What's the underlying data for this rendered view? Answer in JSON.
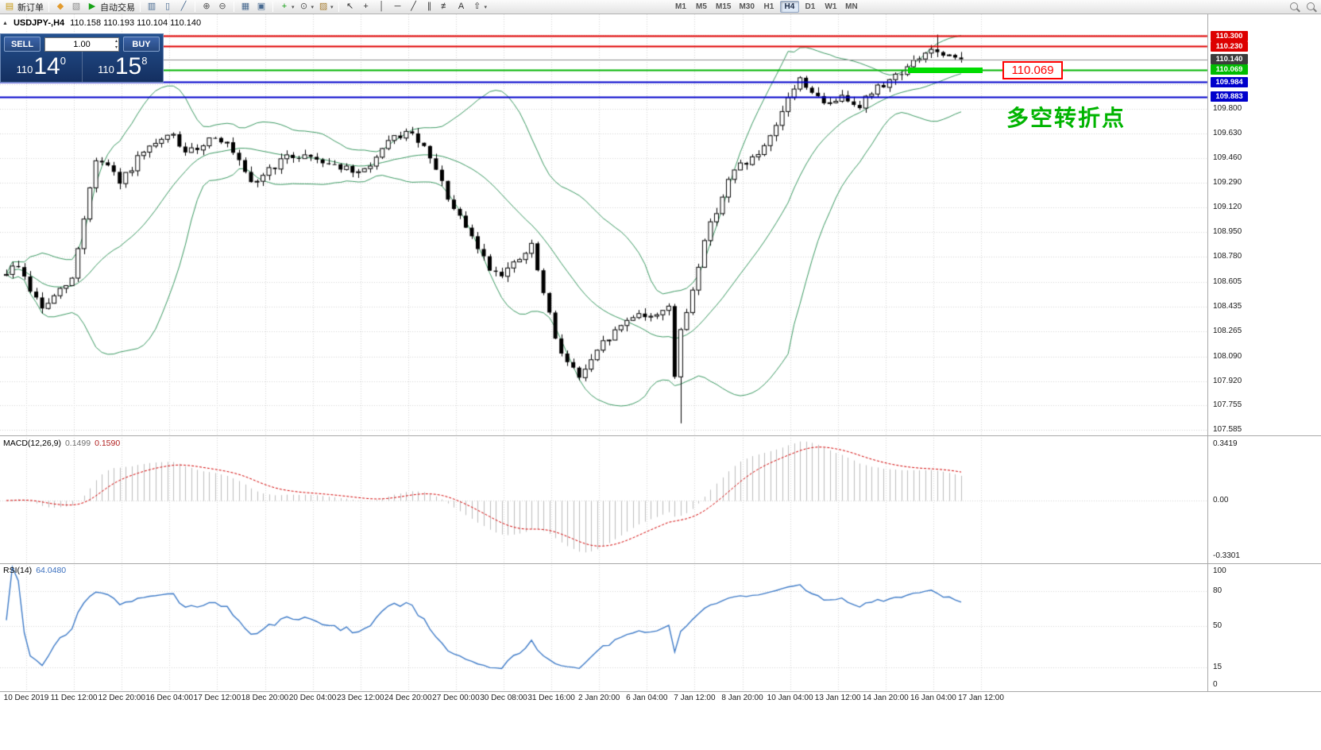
{
  "toolbar": {
    "dropdown_glyph": "▾",
    "left_groups": [
      {
        "items": [
          {
            "name": "new-order",
            "glyph": "▤",
            "glyph_color": "#c79810",
            "label": "新订单"
          }
        ]
      },
      {
        "items": [
          {
            "name": "indicator-list",
            "glyph": "◆",
            "glyph_color": "#e39b2d"
          },
          {
            "name": "profiles",
            "glyph": "▧",
            "glyph_color": "#888888"
          },
          {
            "name": "autotrading",
            "glyph": "▶",
            "glyph_color": "#17a317",
            "label": "自动交易"
          }
        ]
      },
      {
        "items": [
          {
            "name": "bar-chart-mode",
            "glyph": "▥",
            "glyph_color": "#46688f"
          },
          {
            "name": "candlestick-mode",
            "glyph": "▯",
            "glyph_color": "#46688f"
          },
          {
            "name": "line-chart-mode",
            "glyph": "╱",
            "glyph_color": "#46688f"
          }
        ]
      },
      {
        "items": [
          {
            "name": "zoom-in",
            "glyph": "⊕",
            "glyph_color": "#555555"
          },
          {
            "name": "zoom-out",
            "glyph": "⊖",
            "glyph_color": "#555555"
          }
        ]
      },
      {
        "items": [
          {
            "name": "tile-windows",
            "glyph": "▦",
            "glyph_color": "#46688f"
          },
          {
            "name": "arrange-windows",
            "glyph": "▣",
            "glyph_color": "#46688f"
          }
        ]
      },
      {
        "items": [
          {
            "name": "indicators-add",
            "glyph": "+",
            "glyph_color": "#0b9b0b",
            "dropdown": true
          },
          {
            "name": "periods",
            "glyph": "⊙",
            "glyph_color": "#555555",
            "dropdown": true
          },
          {
            "name": "templates",
            "glyph": "▨",
            "glyph_color": "#a57b2f",
            "dropdown": true
          }
        ]
      },
      {
        "items": [
          {
            "name": "cursor-tool",
            "glyph": "↖",
            "glyph_color": "#333333"
          },
          {
            "name": "crosshair-tool",
            "glyph": "+",
            "glyph_color": "#333333"
          },
          {
            "name": "vertical-line-tool",
            "glyph": "│",
            "glyph_color": "#333333"
          },
          {
            "name": "horizontal-line-tool",
            "glyph": "─",
            "glyph_color": "#333333"
          },
          {
            "name": "trendline-tool",
            "glyph": "╱",
            "glyph_color": "#333333"
          },
          {
            "name": "channel-tool",
            "glyph": "∥",
            "glyph_color": "#333333"
          },
          {
            "name": "fibonacci-tool",
            "glyph": "≢",
            "glyph_color": "#333333"
          },
          {
            "name": "text-tool",
            "glyph": "A",
            "glyph_color": "#333333"
          },
          {
            "name": "arrows-tool",
            "glyph": "⇧",
            "glyph_color": "#333333",
            "dropdown": true
          }
        ]
      }
    ],
    "timeframes": [
      {
        "label": "M1"
      },
      {
        "label": "M5"
      },
      {
        "label": "M15"
      },
      {
        "label": "M30"
      },
      {
        "label": "H1"
      },
      {
        "label": "H4",
        "active": true
      },
      {
        "label": "D1"
      },
      {
        "label": "W1"
      },
      {
        "label": "MN"
      }
    ],
    "right_icons": [
      {
        "name": "search"
      },
      {
        "name": "quick-search"
      }
    ]
  },
  "chart": {
    "collapse_glyph": "▲",
    "header": {
      "symbol_period": "USDJPY-,H4",
      "ohlc": "110.158 110.193 110.104 110.140"
    },
    "trade_panel": {
      "sell_label": "SELL",
      "buy_label": "BUY",
      "lot": "1.00",
      "spin_up": "▴",
      "spin_down": "▾",
      "sell_int": "110",
      "sell_big": "14",
      "sell_sup": "0",
      "buy_int": "110",
      "buy_big": "15",
      "buy_sup": "8"
    },
    "price_label_box": "110.069",
    "annotation": "多空转折点"
  },
  "indicators": {
    "macd_label": "MACD(12,26,9)",
    "macd_value_main": "0.1499",
    "macd_value_signal": "0.1590",
    "rsi_label": "RSI(14)",
    "rsi_value": "64.0480"
  },
  "chart_data": {
    "type": "candlestick",
    "symbol": "USDJPY-",
    "period": "H4",
    "bars": 161,
    "last_close": 110.14,
    "ylim": [
      107.547,
      110.45
    ],
    "price_axis_ticks": [
      109.8,
      109.63,
      109.46,
      109.29,
      109.12,
      108.95,
      108.78,
      108.605,
      108.435,
      108.265,
      108.09,
      107.92,
      107.755,
      107.585
    ],
    "extra_grid_prices": [
      110.31,
      110.14,
      109.97
    ],
    "badges": [
      {
        "value": "110.300",
        "bg": "#dd0000"
      },
      {
        "value": "110.230",
        "bg": "#dd0000"
      },
      {
        "value": "110.140",
        "bg": "#3c3c3c"
      },
      {
        "value": "110.069",
        "bg": "#00bc00"
      },
      {
        "value": "109.984",
        "bg": "#0000cc"
      },
      {
        "value": "109.883",
        "bg": "#0000cc"
      }
    ],
    "hlines": [
      {
        "name": "resistance-line-1",
        "price": 110.3,
        "color": "#e00000",
        "width": 2
      },
      {
        "name": "resistance-line-2",
        "price": 110.23,
        "color": "#e00000",
        "width": 2
      },
      {
        "name": "bid-price-line",
        "price": 110.14,
        "color": "#909090",
        "width": 1
      },
      {
        "name": "pivot-line",
        "price": 110.069,
        "color": "#00b400",
        "width": 2
      },
      {
        "name": "support-line-1",
        "price": 109.984,
        "color": "#0000cc",
        "width": 2
      },
      {
        "name": "support-line-2",
        "price": 109.883,
        "color": "#0000cc",
        "width": 2
      }
    ],
    "highlight_segment": {
      "price": 110.072,
      "color": "#00dc00",
      "note": "thick green segment over mid-January bars"
    },
    "time_labels": [
      "10 Dec 2019",
      "11 Dec 12:00",
      "12 Dec 20:00",
      "16 Dec 04:00",
      "17 Dec 12:00",
      "18 Dec 20:00",
      "20 Dec 04:00",
      "23 Dec 12:00",
      "24 Dec 20:00",
      "27 Dec 00:00",
      "30 Dec 08:00",
      "31 Dec 16:00",
      "2 Jan 20:00",
      "6 Jan 04:00",
      "7 Jan 12:00",
      "8 Jan 20:00",
      "10 Jan 04:00",
      "13 Jan 12:00",
      "14 Jan 20:00",
      "16 Jan 04:00",
      "17 Jan 12:00"
    ],
    "price_anchors": [
      [
        0,
        108.65
      ],
      [
        3,
        108.72
      ],
      [
        5,
        108.55
      ],
      [
        7,
        108.42
      ],
      [
        9,
        108.5
      ],
      [
        12,
        108.62
      ],
      [
        14,
        109.05
      ],
      [
        16,
        109.45
      ],
      [
        18,
        109.4
      ],
      [
        20,
        109.28
      ],
      [
        23,
        109.45
      ],
      [
        26,
        109.55
      ],
      [
        29,
        109.62
      ],
      [
        31,
        109.48
      ],
      [
        33,
        109.53
      ],
      [
        36,
        109.62
      ],
      [
        38,
        109.55
      ],
      [
        40,
        109.42
      ],
      [
        42,
        109.27
      ],
      [
        45,
        109.38
      ],
      [
        48,
        109.46
      ],
      [
        51,
        109.48
      ],
      [
        54,
        109.44
      ],
      [
        57,
        109.4
      ],
      [
        60,
        109.34
      ],
      [
        63,
        109.46
      ],
      [
        66,
        109.6
      ],
      [
        68,
        109.63
      ],
      [
        70,
        109.58
      ],
      [
        72,
        109.45
      ],
      [
        74,
        109.28
      ],
      [
        76,
        109.1
      ],
      [
        78,
        108.97
      ],
      [
        80,
        108.84
      ],
      [
        82,
        108.7
      ],
      [
        84,
        108.67
      ],
      [
        86,
        108.72
      ],
      [
        88,
        108.8
      ],
      [
        89,
        108.85
      ],
      [
        91,
        108.52
      ],
      [
        93,
        108.22
      ],
      [
        95,
        108.05
      ],
      [
        97,
        107.95
      ],
      [
        99,
        108.05
      ],
      [
        101,
        108.18
      ],
      [
        103,
        108.26
      ],
      [
        105,
        108.34
      ],
      [
        107,
        108.4
      ],
      [
        109,
        108.35
      ],
      [
        111,
        108.42
      ],
      [
        112,
        108.45
      ],
      [
        113,
        107.95
      ],
      [
        114,
        108.25
      ],
      [
        116,
        108.55
      ],
      [
        118,
        108.9
      ],
      [
        120,
        109.1
      ],
      [
        122,
        109.3
      ],
      [
        124,
        109.42
      ],
      [
        126,
        109.45
      ],
      [
        128,
        109.52
      ],
      [
        130,
        109.66
      ],
      [
        132,
        109.88
      ],
      [
        134,
        110.0
      ],
      [
        136,
        109.92
      ],
      [
        138,
        109.82
      ],
      [
        140,
        109.87
      ],
      [
        142,
        109.87
      ],
      [
        144,
        109.83
      ],
      [
        146,
        109.91
      ],
      [
        148,
        109.97
      ],
      [
        150,
        110.03
      ],
      [
        152,
        110.08
      ],
      [
        154,
        110.15
      ],
      [
        156,
        110.21
      ],
      [
        158,
        110.15
      ],
      [
        161,
        110.14
      ]
    ],
    "wick_overrides": [
      {
        "bar": 113,
        "low": 107.63
      },
      {
        "bar": 156,
        "high": 110.31
      }
    ],
    "bollinger": {
      "period": 20,
      "deviation": 2,
      "color": "#3c9a63"
    },
    "macd": {
      "fast": 12,
      "slow": 26,
      "signal": 9,
      "axis_labels": [
        "0.3419",
        "0.00",
        "-0.3301"
      ],
      "axis_values": [
        0.3419,
        0,
        -0.3301
      ],
      "histogram_color": "#bdbdbd",
      "signal_color": "#d40000"
    },
    "rsi": {
      "period": 14,
      "axis_labels": [
        "100",
        "80",
        "50",
        "15",
        "0"
      ],
      "axis_values": [
        100,
        80,
        50,
        15,
        0
      ],
      "levels": [
        80,
        50,
        15
      ],
      "line_color": "#3e7bc8"
    }
  }
}
